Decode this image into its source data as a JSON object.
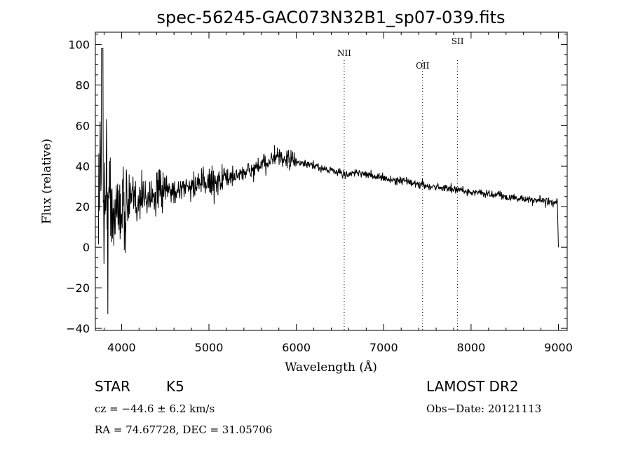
{
  "chart_data": {
    "type": "line",
    "title": "spec-56245-GAC073N32B1_sp07-039.fits",
    "xlabel": "Wavelength (Å)",
    "ylabel": "Flux (relative)",
    "xlim": [
      3700,
      9100
    ],
    "ylim": [
      -41,
      106
    ],
    "xticks": [
      4000,
      5000,
      6000,
      7000,
      8000,
      9000
    ],
    "yticks": [
      -40,
      -20,
      0,
      20,
      40,
      60,
      80,
      100
    ],
    "grid": false,
    "series": [
      {
        "x": [
          3750,
          3800,
          3850,
          3900,
          3950,
          4000,
          4100,
          4200,
          4300,
          4400,
          4500,
          4600,
          4700,
          4800,
          4900,
          5000,
          5100,
          5200,
          5300,
          5400,
          5500,
          5600,
          5700,
          5750,
          5800,
          5900,
          6000,
          6100,
          6200,
          6300,
          6400,
          6500,
          6563,
          6600,
          6700,
          6800,
          6900,
          7000,
          7100,
          7200,
          7300,
          7400,
          7500,
          7600,
          7700,
          7800,
          7900,
          8000,
          8100,
          8200,
          8300,
          8400,
          8500,
          8600,
          8700,
          8800,
          8900,
          9000
        ],
        "y": [
          30,
          25,
          22,
          20,
          18,
          20,
          22,
          24,
          25,
          26,
          27,
          28,
          29,
          30,
          31,
          32,
          33,
          34,
          35,
          37,
          38,
          40,
          43,
          44,
          44,
          43,
          42,
          41,
          40,
          39,
          38,
          37,
          35,
          36,
          37,
          36,
          35,
          34,
          33,
          33,
          32,
          31,
          30,
          30,
          29,
          29,
          28,
          27,
          27,
          26,
          26,
          25,
          24,
          24,
          23,
          23,
          22,
          22
        ]
      }
    ],
    "lines": [
      {
        "label": "NII",
        "x": 6548
      },
      {
        "label": "OII",
        "x": 7445
      },
      {
        "label": "SII",
        "x": 7845
      }
    ]
  },
  "info": {
    "object_class": "STAR",
    "subclass": "K5",
    "survey": "LAMOST DR2",
    "cz": "cz = −44.6 ± 6.2 km/s",
    "obs_date": "Obs−Date: 20121113",
    "coords": "RA =  74.67728, DEC =  31.05706"
  }
}
